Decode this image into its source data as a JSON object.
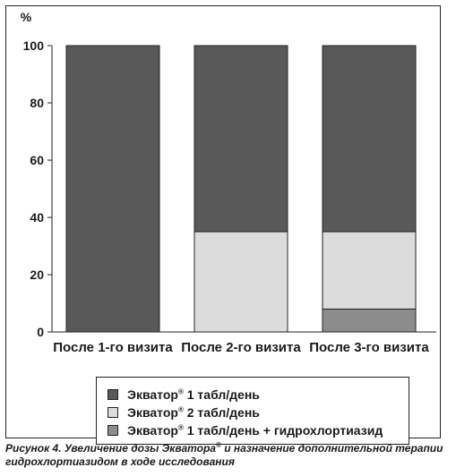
{
  "chart_data": {
    "type": "bar",
    "stacked": true,
    "unit_label": "%",
    "ylim": [
      0,
      100
    ],
    "yticks": [
      0,
      20,
      40,
      60,
      80,
      100
    ],
    "categories": [
      "После 1-го визита",
      "После 2-го визита",
      "После 3-го визита"
    ],
    "series": [
      {
        "name": "Экватор® 1 табл/день + гидрохлортиазид",
        "color": "#8c8c8c",
        "values": [
          0,
          0,
          8
        ]
      },
      {
        "name": "Экватор® 2 табл/день",
        "color": "#dcdcdc",
        "values": [
          0,
          35,
          27
        ]
      },
      {
        "name": "Экватор® 1 табл/день",
        "color": "#595959",
        "values": [
          100,
          65,
          65
        ]
      }
    ],
    "legend_position": "bottom"
  },
  "legend": {
    "items": [
      {
        "brand": "Экватор",
        "mark": "®",
        "rest": " 1 табл/день",
        "color": "#595959"
      },
      {
        "brand": "Экватор",
        "mark": "®",
        "rest": " 2 табл/день",
        "color": "#dcdcdc"
      },
      {
        "brand": "Экватор",
        "mark": "®",
        "rest": " 1 табл/день + гидрохлортиазид",
        "color": "#8c8c8c"
      }
    ]
  },
  "caption": {
    "prefix": "Рисунок 4. Увеличение дозы Экватора",
    "mark": "®",
    "suffix": " и назначение дополнительной терапии гидрохлортиазидом в ходе исследования"
  }
}
